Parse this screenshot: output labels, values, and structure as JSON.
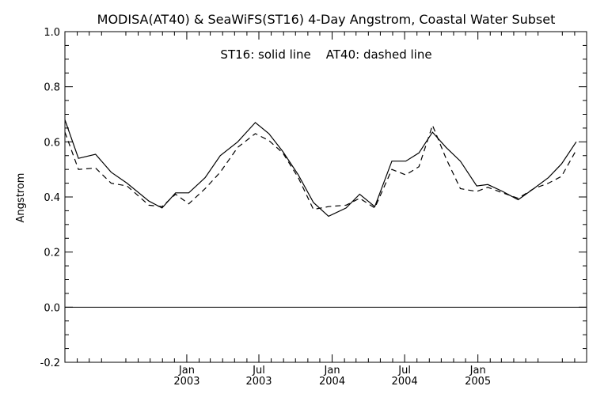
{
  "chart_data": {
    "type": "line",
    "title": "MODISA(AT40) & SeaWiFS(ST16) 4-Day Angstrom, Coastal Water Subset",
    "annotation": "ST16: solid line    AT40: dashed line",
    "xlabel": "",
    "ylabel": "Angstrom",
    "xlim": [
      "2002-03-01",
      "2005-10-01"
    ],
    "ylim": [
      -0.2,
      1.0
    ],
    "yticks": [
      "-0.2",
      "0.0",
      "0.2",
      "0.4",
      "0.6",
      "0.8",
      "1.0"
    ],
    "xticks": [
      {
        "date": "2003-01-01",
        "month": "Jan",
        "year": "2003"
      },
      {
        "date": "2003-07-01",
        "month": "Jul",
        "year": "2003"
      },
      {
        "date": "2004-01-01",
        "month": "Jan",
        "year": "2004"
      },
      {
        "date": "2004-07-01",
        "month": "Jul",
        "year": "2004"
      },
      {
        "date": "2005-01-01",
        "month": "Jan",
        "year": "2005"
      }
    ],
    "reference_line": 0.0,
    "series": [
      {
        "name": "ST16",
        "style": "solid",
        "points": [
          {
            "x": "2002-03-01",
            "y": 0.68
          },
          {
            "x": "2002-04-04",
            "y": 0.54
          },
          {
            "x": "2002-05-17",
            "y": 0.555
          },
          {
            "x": "2002-06-25",
            "y": 0.49
          },
          {
            "x": "2002-08-04",
            "y": 0.45
          },
          {
            "x": "2002-09-28",
            "y": 0.385
          },
          {
            "x": "2002-10-31",
            "y": 0.36
          },
          {
            "x": "2002-12-04",
            "y": 0.415
          },
          {
            "x": "2003-01-06",
            "y": 0.415
          },
          {
            "x": "2003-02-16",
            "y": 0.47
          },
          {
            "x": "2003-03-26",
            "y": 0.55
          },
          {
            "x": "2003-05-09",
            "y": 0.6
          },
          {
            "x": "2003-06-22",
            "y": 0.67
          },
          {
            "x": "2003-07-26",
            "y": 0.63
          },
          {
            "x": "2003-08-30",
            "y": 0.565
          },
          {
            "x": "2003-10-08",
            "y": 0.48
          },
          {
            "x": "2003-11-15",
            "y": 0.38
          },
          {
            "x": "2003-12-23",
            "y": 0.33
          },
          {
            "x": "2004-02-05",
            "y": 0.36
          },
          {
            "x": "2004-03-10",
            "y": 0.41
          },
          {
            "x": "2004-04-17",
            "y": 0.365
          },
          {
            "x": "2004-05-30",
            "y": 0.53
          },
          {
            "x": "2004-07-04",
            "y": 0.53
          },
          {
            "x": "2004-08-06",
            "y": 0.56
          },
          {
            "x": "2004-09-09",
            "y": 0.635
          },
          {
            "x": "2004-10-13",
            "y": 0.58
          },
          {
            "x": "2004-11-18",
            "y": 0.53
          },
          {
            "x": "2004-12-29",
            "y": 0.44
          },
          {
            "x": "2005-01-26",
            "y": 0.445
          },
          {
            "x": "2005-03-04",
            "y": 0.42
          },
          {
            "x": "2005-04-12",
            "y": 0.39
          },
          {
            "x": "2005-05-21",
            "y": 0.43
          },
          {
            "x": "2005-06-27",
            "y": 0.47
          },
          {
            "x": "2005-07-30",
            "y": 0.52
          },
          {
            "x": "2005-09-05",
            "y": 0.6
          }
        ]
      },
      {
        "name": "AT40",
        "style": "dashed",
        "points": [
          {
            "x": "2002-03-01",
            "y": 0.635
          },
          {
            "x": "2002-04-04",
            "y": 0.5
          },
          {
            "x": "2002-05-17",
            "y": 0.505
          },
          {
            "x": "2002-06-25",
            "y": 0.45
          },
          {
            "x": "2002-08-04",
            "y": 0.44
          },
          {
            "x": "2002-09-28",
            "y": 0.37
          },
          {
            "x": "2002-10-31",
            "y": 0.365
          },
          {
            "x": "2002-12-04",
            "y": 0.41
          },
          {
            "x": "2003-01-06",
            "y": 0.375
          },
          {
            "x": "2003-02-16",
            "y": 0.43
          },
          {
            "x": "2003-03-26",
            "y": 0.49
          },
          {
            "x": "2003-05-09",
            "y": 0.58
          },
          {
            "x": "2003-06-22",
            "y": 0.63
          },
          {
            "x": "2003-07-26",
            "y": 0.605
          },
          {
            "x": "2003-08-30",
            "y": 0.56
          },
          {
            "x": "2003-10-08",
            "y": 0.47
          },
          {
            "x": "2003-11-15",
            "y": 0.355
          },
          {
            "x": "2003-12-23",
            "y": 0.365
          },
          {
            "x": "2004-02-05",
            "y": 0.37
          },
          {
            "x": "2004-03-10",
            "y": 0.395
          },
          {
            "x": "2004-04-17",
            "y": 0.36
          },
          {
            "x": "2004-05-30",
            "y": 0.5
          },
          {
            "x": "2004-07-04",
            "y": 0.48
          },
          {
            "x": "2004-08-06",
            "y": 0.51
          },
          {
            "x": "2004-09-09",
            "y": 0.66
          },
          {
            "x": "2004-10-13",
            "y": 0.54
          },
          {
            "x": "2004-11-18",
            "y": 0.43
          },
          {
            "x": "2004-12-29",
            "y": 0.42
          },
          {
            "x": "2005-01-26",
            "y": 0.435
          },
          {
            "x": "2005-03-04",
            "y": 0.415
          },
          {
            "x": "2005-04-12",
            "y": 0.395
          },
          {
            "x": "2005-05-21",
            "y": 0.43
          },
          {
            "x": "2005-06-27",
            "y": 0.45
          },
          {
            "x": "2005-07-30",
            "y": 0.475
          },
          {
            "x": "2005-09-05",
            "y": 0.57
          }
        ]
      }
    ],
    "grid": false,
    "legend": "none"
  }
}
